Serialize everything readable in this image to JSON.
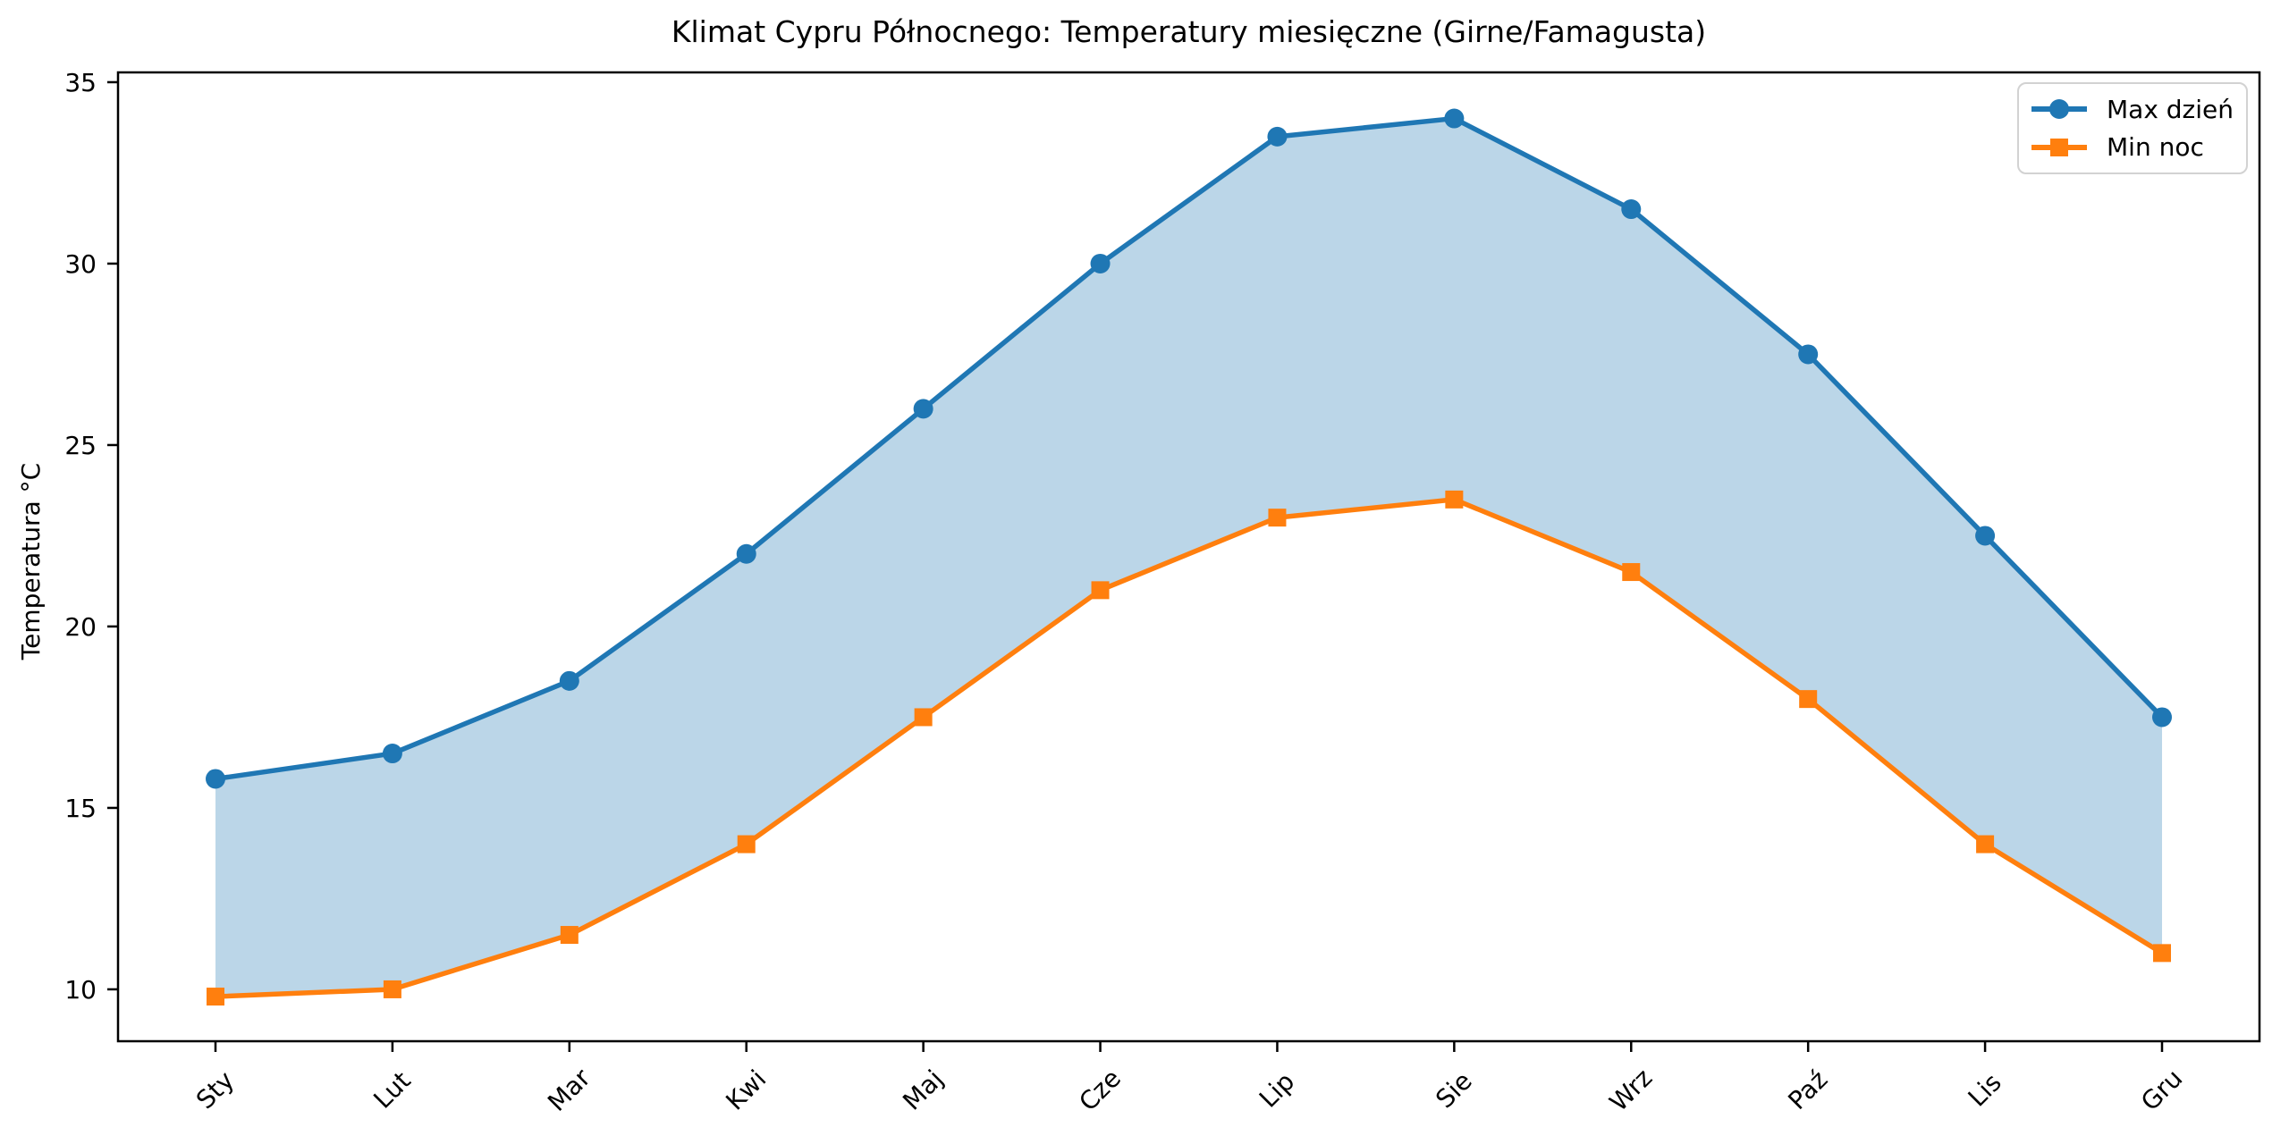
{
  "chart_data": {
    "type": "line",
    "title": "Klimat Cypru Północnego: Temperatury miesięczne (Girne/Famagusta)",
    "xlabel": "",
    "ylabel": "Temperatura °C",
    "categories": [
      "Sty",
      "Lut",
      "Mar",
      "Kwi",
      "Maj",
      "Cze",
      "Lip",
      "Sie",
      "Wrz",
      "Paź",
      "Lis",
      "Gru"
    ],
    "series": [
      {
        "name": "Max dzień",
        "values": [
          15.8,
          16.5,
          18.5,
          22.0,
          26.0,
          30.0,
          33.5,
          34.0,
          31.5,
          27.5,
          22.5,
          17.5
        ],
        "color": "#1f77b4",
        "marker": "circle"
      },
      {
        "name": "Min noc",
        "values": [
          9.8,
          10.0,
          11.5,
          14.0,
          17.5,
          21.0,
          23.0,
          23.5,
          21.5,
          18.0,
          14.0,
          11.0
        ],
        "color": "#ff7f0e",
        "marker": "square"
      }
    ],
    "fill_between": {
      "color": "#1f77b4",
      "opacity": 0.3
    },
    "yticks": [
      10,
      15,
      20,
      25,
      30,
      35
    ],
    "ylim": [
      8.57,
      35.27
    ],
    "grid": false,
    "legend_position": "upper right",
    "x_tick_rotation_deg": 45,
    "axis_color": "#000000",
    "background_color": "#ffffff"
  }
}
